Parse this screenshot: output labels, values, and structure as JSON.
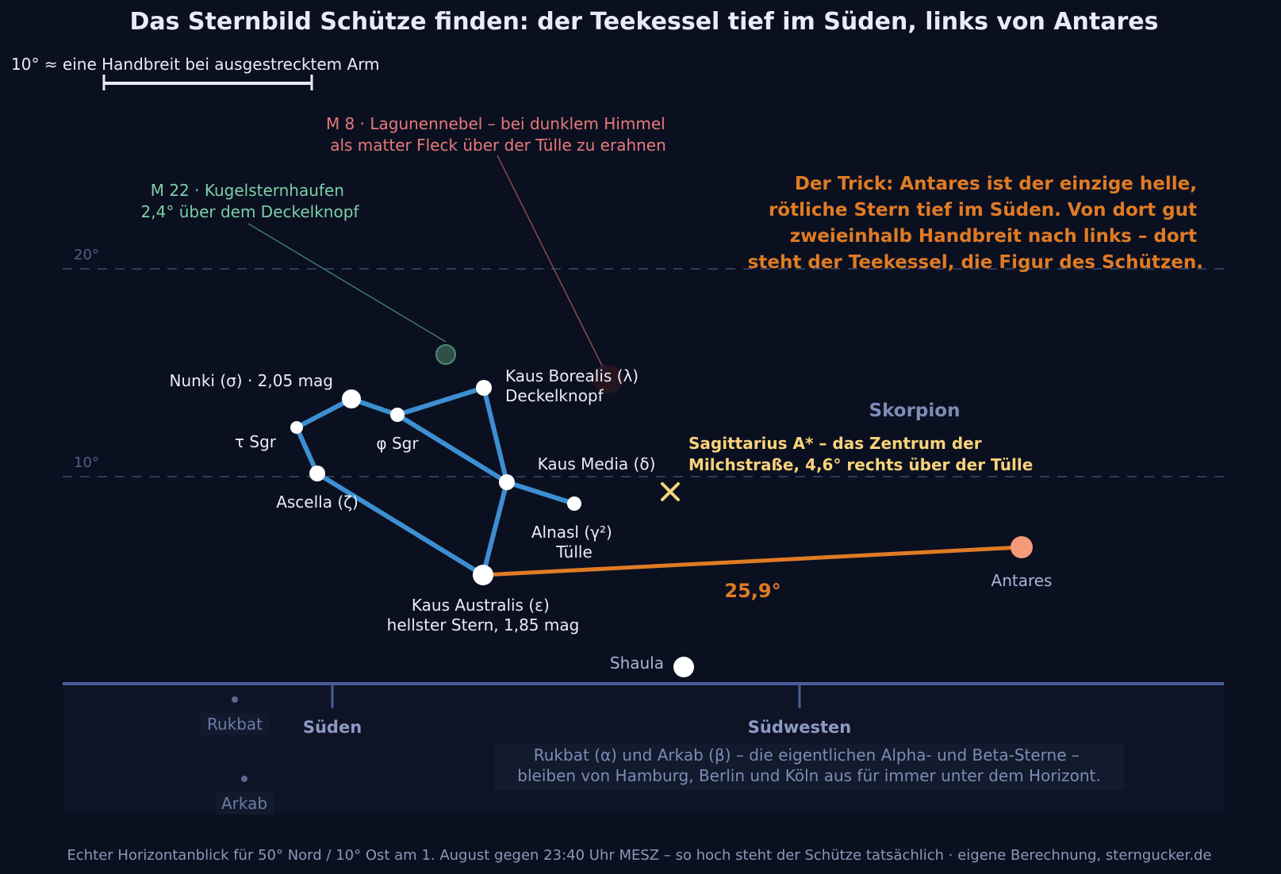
{
  "title": "Das Sternbild Schütze finden: der Teekessel tief im Süden, links von Antares",
  "scale_bar": {
    "label": "10° ≈ eine Handbreit bei ausgestrecktem Arm"
  },
  "altitude_labels": {
    "a20": "20°",
    "a10": "10°"
  },
  "annotations": {
    "m8": [
      "M 8 · Lagunennebel – bei dunklem Himmel",
      "als matter Fleck über der Tülle zu erahnen"
    ],
    "m22": [
      "M 22 · Kugelsternhaufen",
      "2,4° über dem Deckelknopf"
    ],
    "trick": [
      "Der Trick: Antares ist der einzige helle,",
      "rötliche Stern tief im Süden. Von dort gut",
      "zweieinhalb Handbreit nach links – dort",
      "steht der Teekessel, die Figur des Schützen."
    ],
    "sgr_a": [
      "Sagittarius A* – das Zentrum der",
      "Milchstraße, 4,6° rechts über der Tülle"
    ],
    "distance": "25,9°",
    "scorpius": "Skorpion",
    "below_horizon": [
      "Rukbat (α) und Arkab (β) – die eigentlichen Alpha- und Beta-Sterne –",
      "bleiben von Hamburg, Berlin und Köln aus für immer unter dem Horizont."
    ]
  },
  "stars": {
    "nunki": "Nunki (σ) · 2,05 mag",
    "tau": "τ Sgr",
    "phi": "φ Sgr",
    "kaus_borealis": [
      "Kaus Borealis (λ)",
      "Deckelknopf"
    ],
    "kaus_media": "Kaus Media (δ)",
    "ascella": "Ascella (ζ)",
    "alnasl": [
      "Alnasl (γ²)",
      "Tülle"
    ],
    "kaus_australis": [
      "Kaus Australis (ε)",
      "hellster Stern, 1,85 mag"
    ],
    "antares": "Antares",
    "shaula": "Shaula",
    "rukbat": "Rukbat",
    "arkab": "Arkab"
  },
  "directions": {
    "south": "Süden",
    "southwest": "Südwesten"
  },
  "footer": "Echter Horizontanblick für 50° Nord / 10° Ost am 1. August gegen 23:40 Uhr MESZ – so hoch steht der Schütze tatsächlich · eigene Berechnung, sterngucker.de",
  "colors": {
    "background": "#0b1020",
    "constellation": "#3d8fd1",
    "antares_line": "#e07b24",
    "antares": "#f59a78",
    "sgr_a": "#f8d37a",
    "m22": "#7dcfa8",
    "m8": "#e8797a",
    "muted": "#7e8bb4",
    "horizon": "#4a5e9a"
  }
}
